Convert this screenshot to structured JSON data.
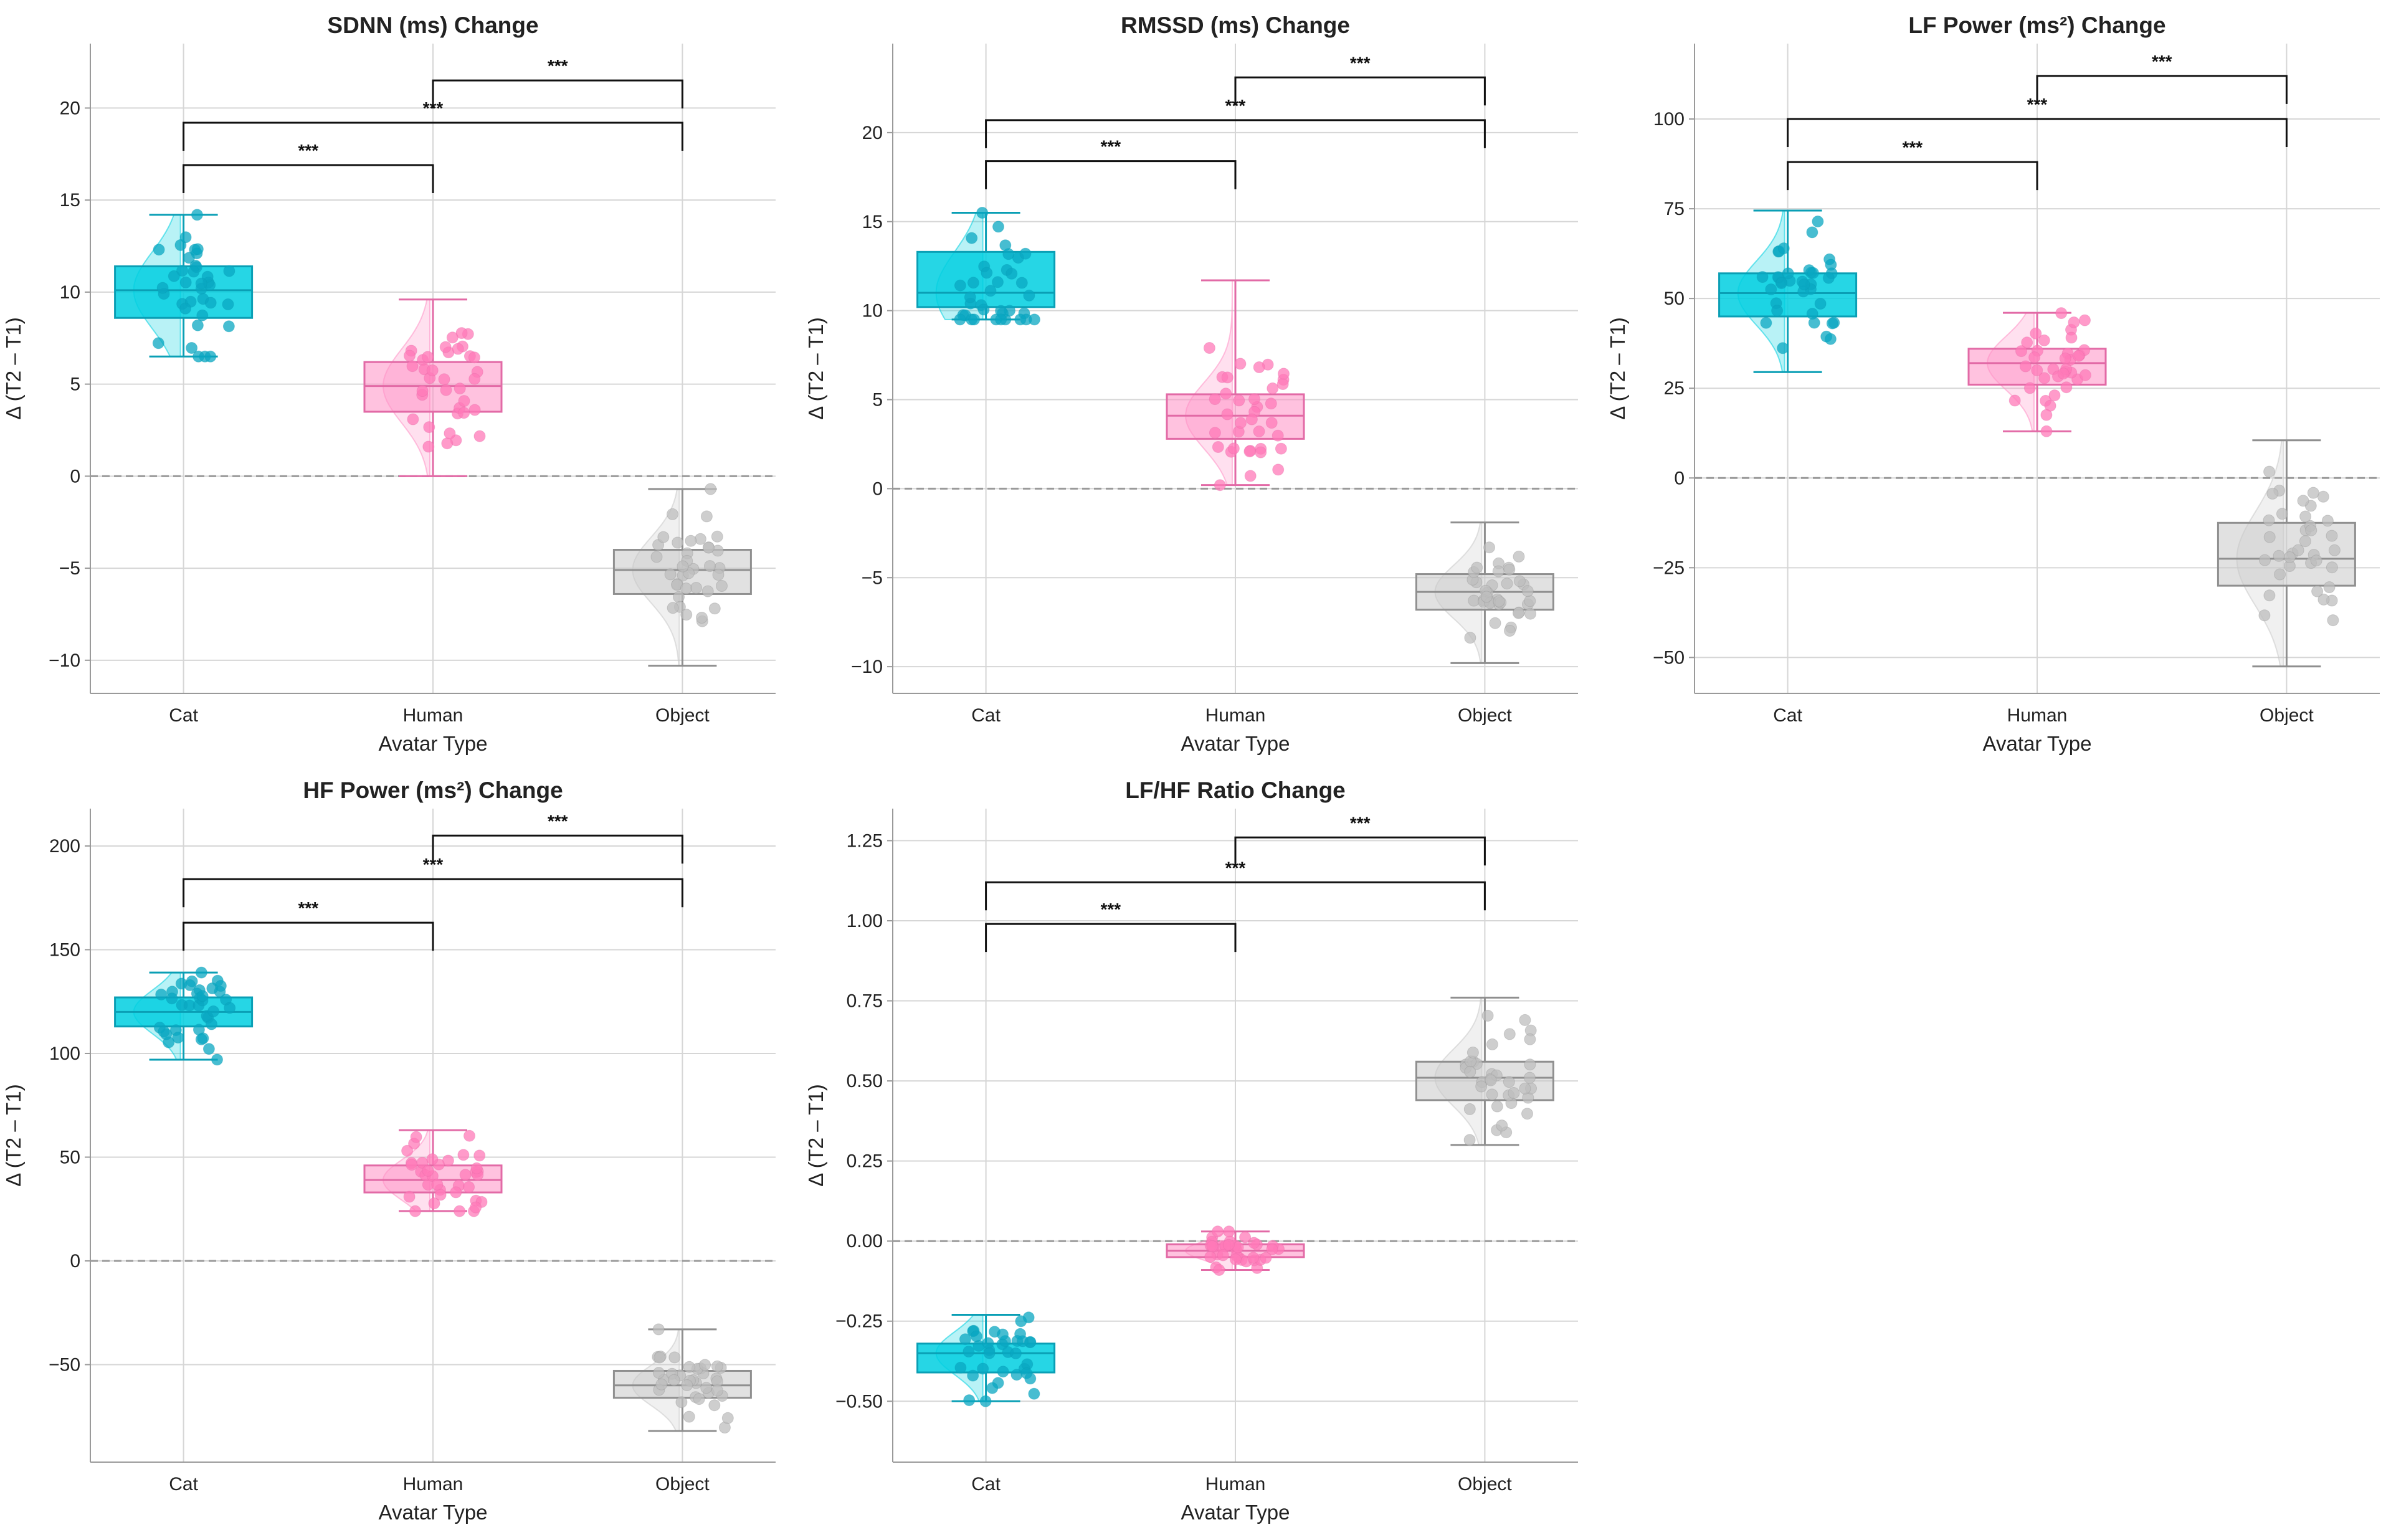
{
  "figure": {
    "category_colors": {
      "Cat": "#00cfe0",
      "Human": "#ff8fc4",
      "Object": "#c9c9c9"
    },
    "point_colors": {
      "Cat": "#0aa7c2",
      "Human": "#ff79b8",
      "Object": "#bdbdbd"
    },
    "significance_label": "***"
  },
  "chart_data": [
    {
      "type": "box",
      "title": "SDNN (ms) Change",
      "xlabel": "Avatar Type",
      "ylabel": "Δ (T2 – T1)",
      "categories": [
        "Cat",
        "Human",
        "Object"
      ],
      "ylim": [
        -11.8,
        23.5
      ],
      "yticks": [
        -10,
        -5,
        0,
        5,
        10,
        15,
        20
      ],
      "ytick_labels": [
        "−10",
        "−5",
        "0",
        "5",
        "10",
        "15",
        "20"
      ],
      "reference_line": 0,
      "boxes": [
        {
          "name": "Cat",
          "min": 6.5,
          "q1": 8.6,
          "median": 10.1,
          "q3": 11.4,
          "max": 14.2
        },
        {
          "name": "Human",
          "min": 0.0,
          "q1": 3.5,
          "median": 4.9,
          "q3": 6.2,
          "max": 9.6
        },
        {
          "name": "Object",
          "min": -10.3,
          "q1": -6.4,
          "median": -5.1,
          "q3": -4.0,
          "max": -0.7
        }
      ],
      "comparisons": [
        {
          "pair": [
            "Cat",
            "Human"
          ],
          "label": "***",
          "y": 16.9
        },
        {
          "pair": [
            "Cat",
            "Object"
          ],
          "label": "***",
          "y": 19.2
        },
        {
          "pair": [
            "Human",
            "Object"
          ],
          "label": "***",
          "y": 21.5
        }
      ]
    },
    {
      "type": "box",
      "title": "RMSSD (ms) Change",
      "xlabel": "Avatar Type",
      "ylabel": "Δ (T2 – T1)",
      "categories": [
        "Cat",
        "Human",
        "Object"
      ],
      "ylim": [
        -11.5,
        25.0
      ],
      "yticks": [
        -10,
        -5,
        0,
        5,
        10,
        15,
        20
      ],
      "ytick_labels": [
        "−10",
        "−5",
        "0",
        "5",
        "10",
        "15",
        "20"
      ],
      "reference_line": 0,
      "boxes": [
        {
          "name": "Cat",
          "min": 9.5,
          "q1": 10.2,
          "median": 11.0,
          "q3": 13.3,
          "max": 15.5
        },
        {
          "name": "Human",
          "min": 0.2,
          "q1": 2.8,
          "median": 4.1,
          "q3": 5.3,
          "max": 11.7
        },
        {
          "name": "Object",
          "min": -9.8,
          "q1": -6.8,
          "median": -5.8,
          "q3": -4.8,
          "max": -1.9
        }
      ],
      "comparisons": [
        {
          "pair": [
            "Cat",
            "Human"
          ],
          "label": "***",
          "y": 18.4
        },
        {
          "pair": [
            "Cat",
            "Object"
          ],
          "label": "***",
          "y": 20.7
        },
        {
          "pair": [
            "Human",
            "Object"
          ],
          "label": "***",
          "y": 23.1
        }
      ]
    },
    {
      "type": "box",
      "title": "LF Power (ms²) Change",
      "xlabel": "Avatar Type",
      "ylabel": "Δ (T2 – T1)",
      "categories": [
        "Cat",
        "Human",
        "Object"
      ],
      "ylim": [
        -60,
        121
      ],
      "yticks": [
        -50,
        -25,
        0,
        25,
        50,
        75,
        100
      ],
      "ytick_labels": [
        "−50",
        "−25",
        "0",
        "25",
        "50",
        "75",
        "100"
      ],
      "reference_line": 0,
      "boxes": [
        {
          "name": "Cat",
          "min": 29.5,
          "q1": 45.0,
          "median": 51.5,
          "q3": 57.0,
          "max": 74.5
        },
        {
          "name": "Human",
          "min": 13.0,
          "q1": 26.0,
          "median": 32.0,
          "q3": 36.0,
          "max": 46.0
        },
        {
          "name": "Object",
          "min": -52.5,
          "q1": -30.0,
          "median": -22.5,
          "q3": -12.5,
          "max": 10.5
        }
      ],
      "comparisons": [
        {
          "pair": [
            "Cat",
            "Human"
          ],
          "label": "***",
          "y": 88
        },
        {
          "pair": [
            "Cat",
            "Object"
          ],
          "label": "***",
          "y": 100
        },
        {
          "pair": [
            "Human",
            "Object"
          ],
          "label": "***",
          "y": 112
        }
      ]
    },
    {
      "type": "box",
      "title": "HF Power (ms²) Change",
      "xlabel": "Avatar Type",
      "ylabel": "Δ (T2 – T1)",
      "categories": [
        "Cat",
        "Human",
        "Object"
      ],
      "ylim": [
        -97,
        218
      ],
      "yticks": [
        -50,
        0,
        50,
        100,
        150,
        200
      ],
      "ytick_labels": [
        "−50",
        "0",
        "50",
        "100",
        "150",
        "200"
      ],
      "reference_line": 0,
      "boxes": [
        {
          "name": "Cat",
          "min": 97,
          "q1": 113,
          "median": 120,
          "q3": 127,
          "max": 139
        },
        {
          "name": "Human",
          "min": 24,
          "q1": 33,
          "median": 39,
          "q3": 46,
          "max": 63
        },
        {
          "name": "Object",
          "min": -82,
          "q1": -66,
          "median": -60,
          "q3": -53,
          "max": -33
        }
      ],
      "comparisons": [
        {
          "pair": [
            "Cat",
            "Human"
          ],
          "label": "***",
          "y": 163
        },
        {
          "pair": [
            "Cat",
            "Object"
          ],
          "label": "***",
          "y": 184
        },
        {
          "pair": [
            "Human",
            "Object"
          ],
          "label": "***",
          "y": 205
        }
      ]
    },
    {
      "type": "box",
      "title": "LF/HF Ratio Change",
      "xlabel": "Avatar Type",
      "ylabel": "Δ (T2 – T1)",
      "categories": [
        "Cat",
        "Human",
        "Object"
      ],
      "ylim": [
        -0.69,
        1.35
      ],
      "yticks": [
        -0.5,
        -0.25,
        0.0,
        0.25,
        0.5,
        0.75,
        1.0,
        1.25
      ],
      "ytick_labels": [
        "−0.50",
        "−0.25",
        "0.00",
        "0.25",
        "0.50",
        "0.75",
        "1.00",
        "1.25"
      ],
      "reference_line": 0,
      "boxes": [
        {
          "name": "Cat",
          "min": -0.5,
          "q1": -0.41,
          "median": -0.35,
          "q3": -0.32,
          "max": -0.23
        },
        {
          "name": "Human",
          "min": -0.09,
          "q1": -0.05,
          "median": -0.03,
          "q3": -0.01,
          "max": 0.03
        },
        {
          "name": "Object",
          "min": 0.3,
          "q1": 0.44,
          "median": 0.51,
          "q3": 0.56,
          "max": 0.76
        }
      ],
      "comparisons": [
        {
          "pair": [
            "Cat",
            "Human"
          ],
          "label": "***",
          "y": 0.99
        },
        {
          "pair": [
            "Cat",
            "Object"
          ],
          "label": "***",
          "y": 1.12
        },
        {
          "pair": [
            "Human",
            "Object"
          ],
          "label": "***",
          "y": 1.26
        }
      ]
    }
  ]
}
